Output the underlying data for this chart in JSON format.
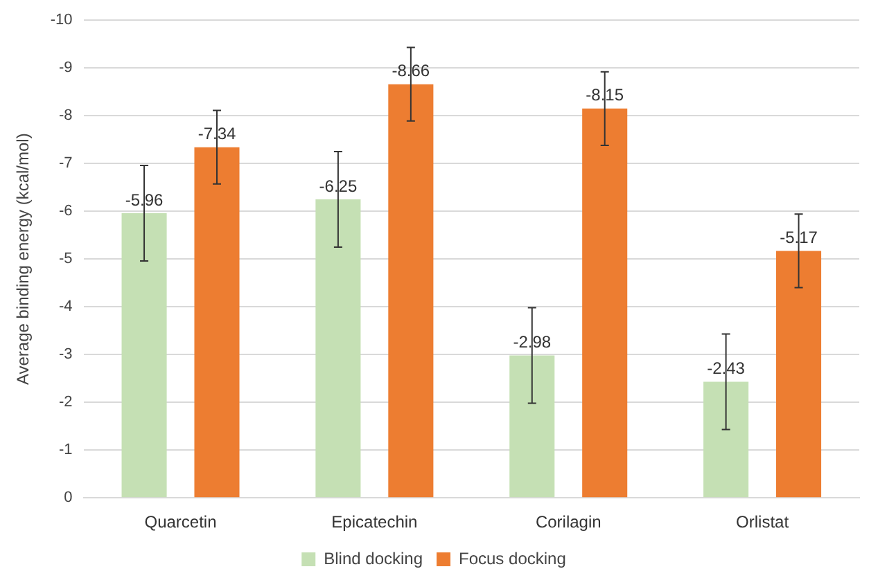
{
  "chart_data": {
    "type": "bar",
    "ylabel": "Average binding energy (kcal/mol)",
    "categories": [
      "Quarcetin",
      "Epicatechin",
      "Corilagin",
      "Orlistat"
    ],
    "series": [
      {
        "name": "Blind docking",
        "color": "#c5e0b4",
        "values": [
          -5.96,
          -6.25,
          -2.98,
          -2.43
        ],
        "errors": [
          1,
          1,
          1,
          1
        ]
      },
      {
        "name": "Focus docking",
        "color": "#ed7d31",
        "values": [
          -7.34,
          -8.66,
          -8.15,
          -5.17
        ],
        "errors": [
          0.77,
          0.77,
          0.77,
          0.77
        ]
      }
    ],
    "ylim": [
      0,
      -10
    ],
    "yticks": [
      0,
      -1,
      -2,
      -3,
      -4,
      -5,
      -6,
      -7,
      -8,
      -9,
      -10
    ],
    "grid": "y",
    "legend": "bottom",
    "data_labels": true
  }
}
